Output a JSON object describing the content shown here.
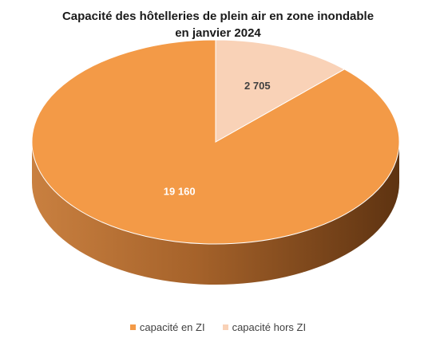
{
  "chart_data": {
    "type": "pie",
    "title_line1": "Capacité des hôtelleries de plein air en zone inondable",
    "title_line2": "en janvier 2024",
    "categories": [
      "capacité en ZI",
      "capacité hors ZI"
    ],
    "values": [
      19160,
      2705
    ],
    "value_labels": [
      "19 160",
      "2 705"
    ],
    "colors": [
      "#F39A47",
      "#F9D2B7"
    ],
    "legend_position": "bottom"
  }
}
